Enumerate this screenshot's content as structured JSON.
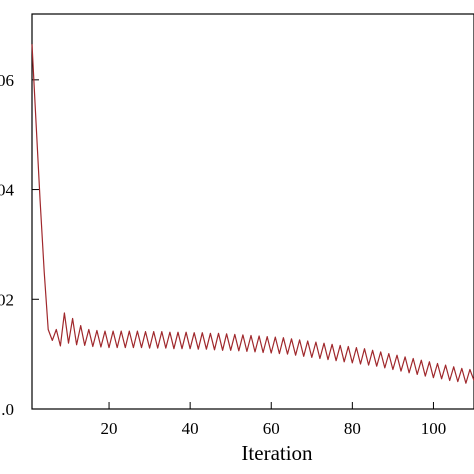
{
  "chart_data": {
    "type": "line",
    "title": "",
    "xlabel": "Iteration",
    "ylabel": "",
    "xlim": [
      1,
      110
    ],
    "ylim": [
      0.0,
      0.072
    ],
    "x_ticks": [
      20,
      40,
      60,
      80,
      100
    ],
    "x_tick_labels": [
      "20",
      "40",
      "60",
      "80",
      "100"
    ],
    "y_ticks": [
      0.0,
      0.02,
      0.04,
      0.06
    ],
    "y_tick_labels": [
      ".0",
      "02",
      "04",
      "06"
    ],
    "grid": false,
    "legend": "none",
    "series": [
      {
        "color": "#a0282c",
        "x": [
          1,
          2,
          3,
          4,
          5,
          6,
          7,
          8,
          9,
          10,
          11,
          12,
          13,
          14,
          15,
          16,
          17,
          18,
          19,
          20,
          21,
          22,
          23,
          24,
          25,
          26,
          27,
          28,
          29,
          30,
          31,
          32,
          33,
          34,
          35,
          36,
          37,
          38,
          39,
          40,
          41,
          42,
          43,
          44,
          45,
          46,
          47,
          48,
          49,
          50,
          51,
          52,
          53,
          54,
          55,
          56,
          57,
          58,
          59,
          60,
          61,
          62,
          63,
          64,
          65,
          66,
          67,
          68,
          69,
          70,
          71,
          72,
          73,
          74,
          75,
          76,
          77,
          78,
          79,
          80,
          81,
          82,
          83,
          84,
          85,
          86,
          87,
          88,
          89,
          90,
          91,
          92,
          93,
          94,
          95,
          96,
          97,
          98,
          99,
          100,
          101,
          102,
          103,
          104,
          105,
          106,
          107,
          108,
          109,
          110
        ],
        "y": [
          0.0665,
          0.052,
          0.038,
          0.025,
          0.0145,
          0.0125,
          0.0145,
          0.0115,
          0.0175,
          0.012,
          0.0165,
          0.0117,
          0.0152,
          0.0116,
          0.0145,
          0.0114,
          0.0143,
          0.0113,
          0.0142,
          0.0112,
          0.0142,
          0.0112,
          0.0142,
          0.0112,
          0.0142,
          0.0112,
          0.0142,
          0.0112,
          0.0141,
          0.0111,
          0.0141,
          0.0111,
          0.0141,
          0.0111,
          0.014,
          0.011,
          0.014,
          0.011,
          0.014,
          0.011,
          0.0139,
          0.0109,
          0.0139,
          0.0109,
          0.0138,
          0.0108,
          0.0138,
          0.0107,
          0.0137,
          0.0107,
          0.0136,
          0.0106,
          0.0135,
          0.0105,
          0.0134,
          0.0104,
          0.0133,
          0.0103,
          0.0132,
          0.0102,
          0.0131,
          0.0101,
          0.013,
          0.01,
          0.0128,
          0.0098,
          0.0126,
          0.0096,
          0.0124,
          0.0094,
          0.0122,
          0.0092,
          0.012,
          0.009,
          0.0118,
          0.0088,
          0.0116,
          0.0086,
          0.0114,
          0.0084,
          0.0112,
          0.0082,
          0.011,
          0.008,
          0.0107,
          0.0078,
          0.0104,
          0.0075,
          0.0101,
          0.0072,
          0.0098,
          0.0069,
          0.0095,
          0.0066,
          0.0092,
          0.0063,
          0.0089,
          0.006,
          0.0086,
          0.0057,
          0.0083,
          0.0055,
          0.008,
          0.0052,
          0.0077,
          0.005,
          0.0074,
          0.0047,
          0.0072,
          0.0052
        ]
      }
    ]
  }
}
